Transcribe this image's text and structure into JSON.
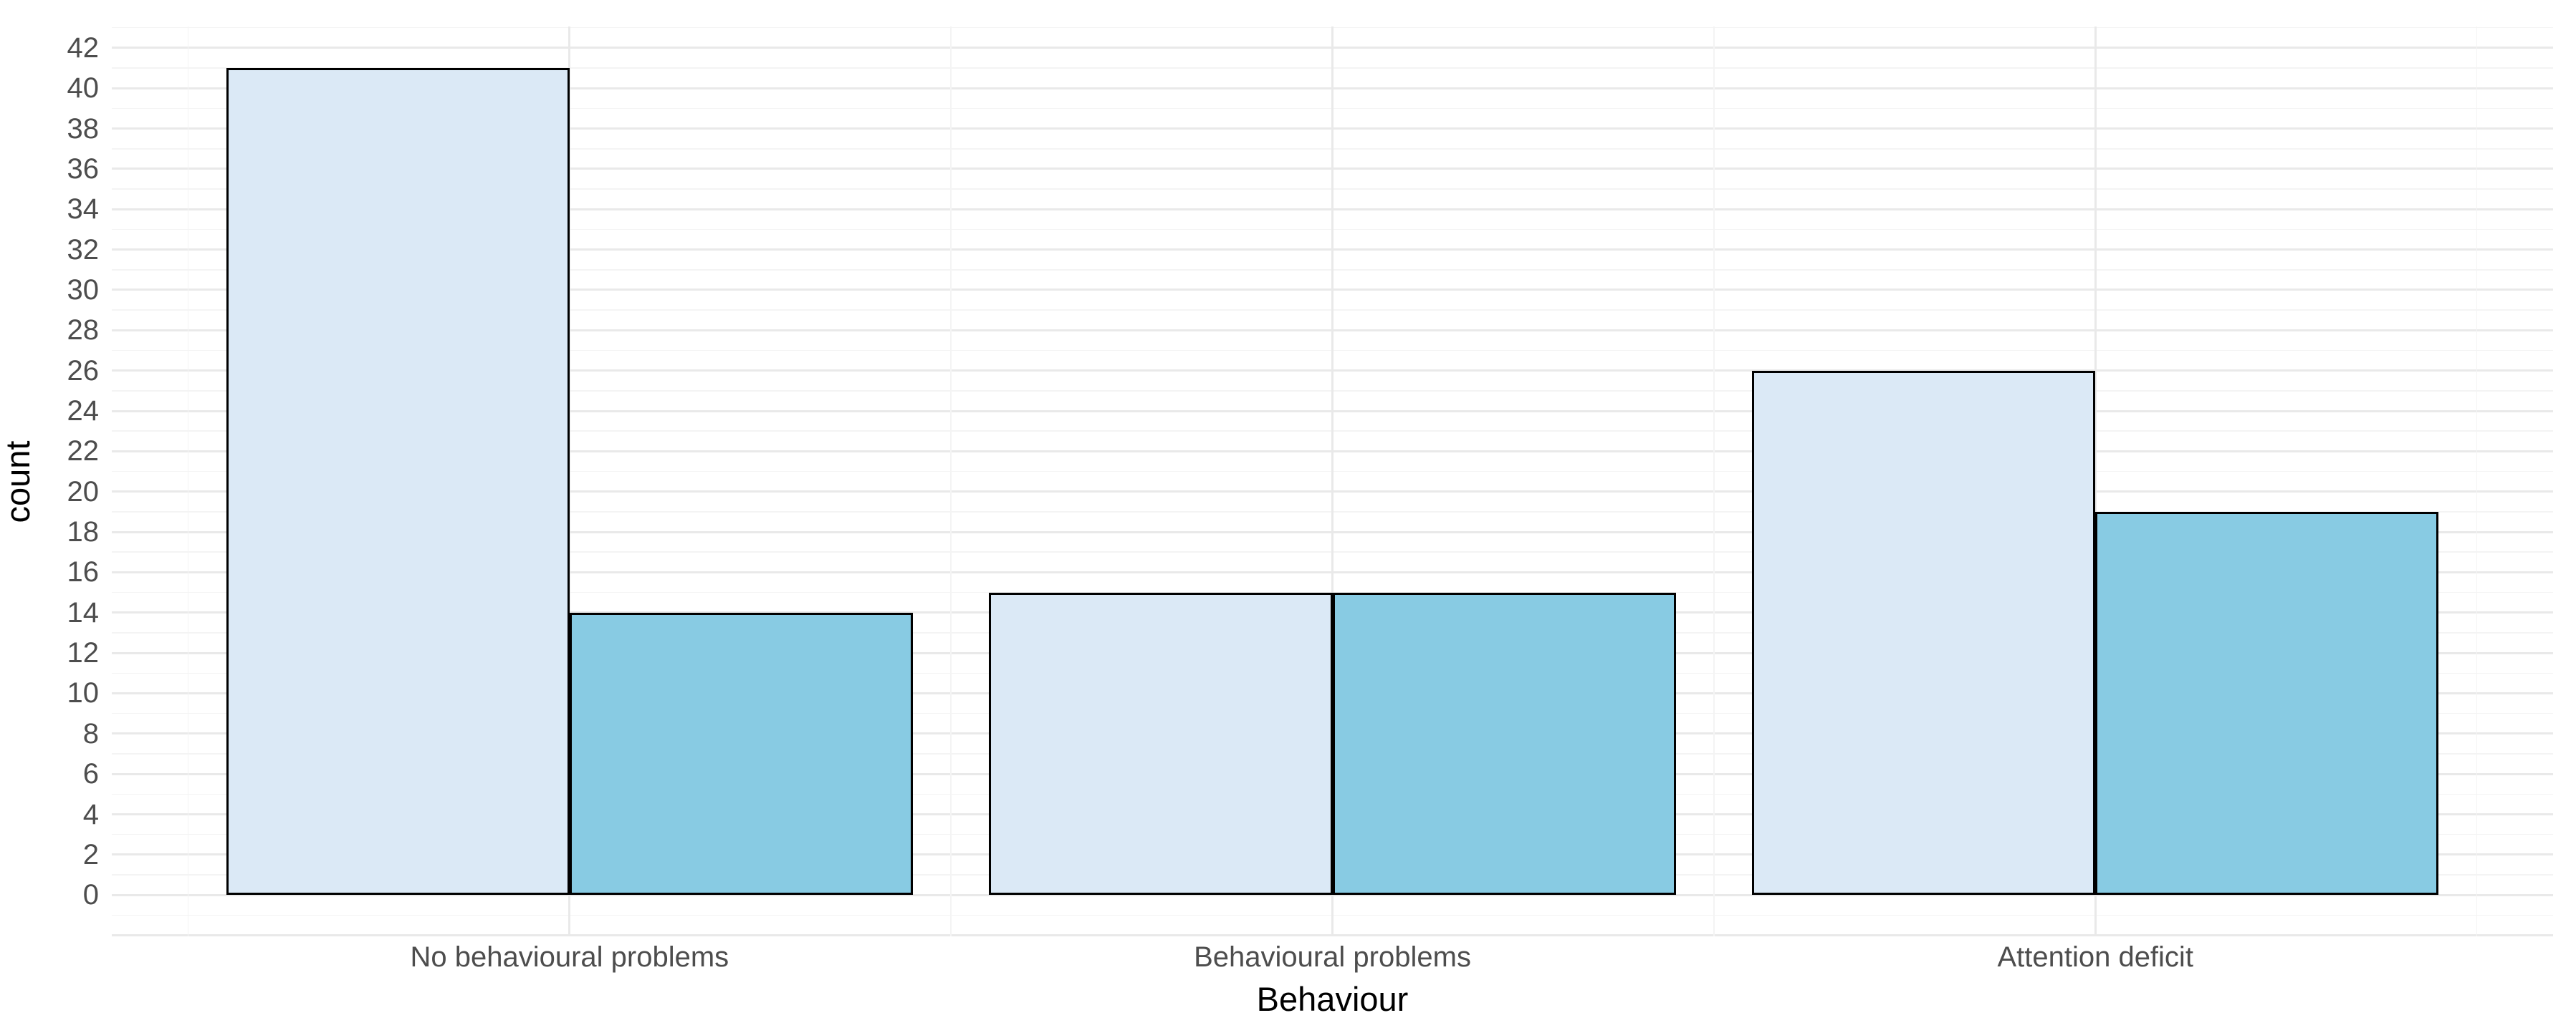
{
  "chart_data": {
    "type": "bar",
    "mode": "grouped-dodged",
    "title": "",
    "xlabel": "Behaviour",
    "ylabel": "count",
    "categories": [
      "No behavioural problems",
      "Behavioural problems",
      "Attention deficit"
    ],
    "series": [
      {
        "name": "light blue",
        "fill": "#DBE9F6",
        "values": [
          41,
          15,
          26
        ]
      },
      {
        "name": "sky blue",
        "fill": "#88CBE3",
        "values": [
          14,
          15,
          19
        ]
      }
    ],
    "bar_outline_color": "#000000",
    "ylim": [
      0,
      42
    ],
    "ytick_step": 2,
    "yticks": [
      0,
      2,
      4,
      6,
      8,
      10,
      12,
      14,
      16,
      18,
      20,
      22,
      24,
      26,
      28,
      30,
      32,
      34,
      36,
      38,
      40,
      42
    ],
    "legend": "none",
    "grid": {
      "show": true,
      "major_color": "#E9E9E9",
      "minor_color": "#F4F4F4"
    },
    "colors": {
      "tick_label": "#4D4D4D",
      "axis_title": "#000000",
      "background": "#FFFFFF"
    }
  }
}
